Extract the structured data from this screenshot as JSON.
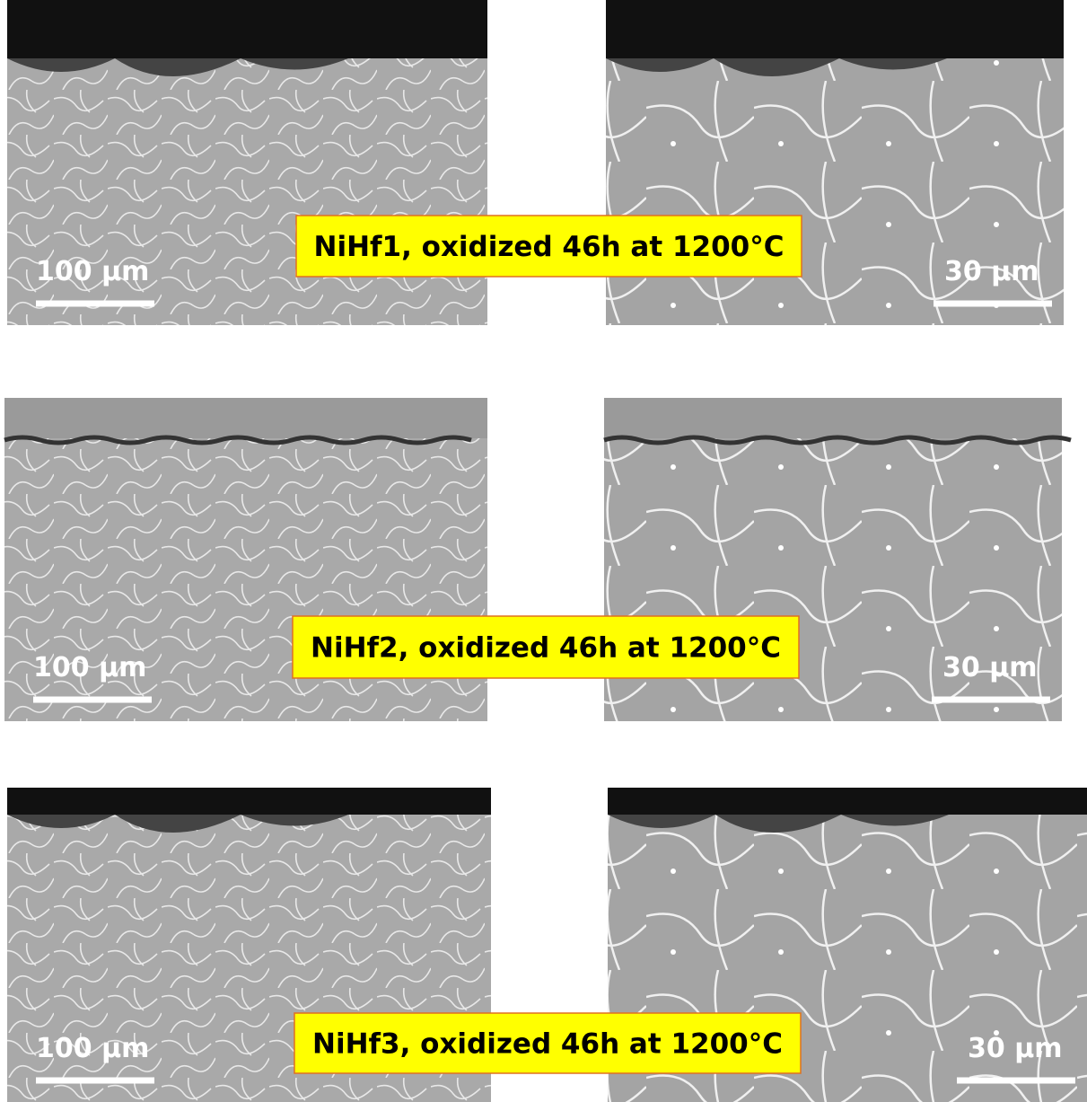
{
  "panels": [
    {
      "caption": "NiHf1, oxidized 46h at 1200°C",
      "left_scale": "100 µm",
      "right_scale": "30 µm"
    },
    {
      "caption": "NiHf2, oxidized 46h at 1200°C",
      "left_scale": "100 µm",
      "right_scale": "30 µm"
    },
    {
      "caption": "NiHf3, oxidized 46h at 1200°C",
      "left_scale": "100 µm",
      "right_scale": "30 µm"
    }
  ]
}
